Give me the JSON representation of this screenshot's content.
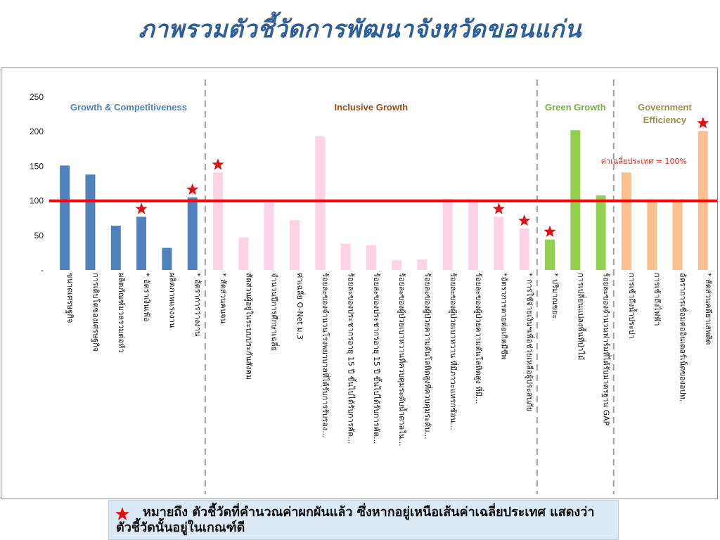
{
  "page": {
    "title": "ภาพรวมตัวชี้วัดการพัฒนาจังหวัดขอนแก่น",
    "footnote": "หมายถึง ตัวชี้วัดที่คำนวณค่าผกผันแล้ว ซึ่งหากอยู่เหนือเส้นค่าเฉลี่ยประเทศ แสดงว่า ตัวชี้วัดนั้นอยู่ในเกณฑ์ดี"
  },
  "colors": {
    "Growth & Competitiveness": "#4f81bd",
    "Inclusive Growth": "#ffd2e6",
    "Green Growth": "#92d050",
    "Government Efficiency": "#fac090",
    "reference_line": "#ff0000",
    "star": "#e11010",
    "divider": "#a0a0a0",
    "group_label_growth": "#4f81bd",
    "group_label_inclusive": "#9c4a12",
    "group_label_green": "#76b041",
    "group_label_government": "#9a8f4f"
  },
  "chart_data": {
    "type": "bar",
    "title": "",
    "xlabel": "",
    "ylabel": "",
    "ylim": [
      0,
      250
    ],
    "yticks": [
      0,
      50,
      100,
      150,
      200,
      250
    ],
    "ytick_labels": [
      "-",
      "50",
      "100",
      "150",
      "200",
      "250"
    ],
    "grid": false,
    "reference_line": {
      "value": 100,
      "label": "ค่าเฉลี่ยประเทศ = 100%"
    },
    "groups": [
      {
        "name": "Growth & Competitiveness",
        "start": 0,
        "end": 5
      },
      {
        "name": "Inclusive Growth",
        "start": 6,
        "end": 18
      },
      {
        "name": "Green Growth",
        "start": 19,
        "end": 21
      },
      {
        "name": "Government Efficiency",
        "start": 22,
        "end": 25
      }
    ],
    "categories": [
      "ขนาดเศรษฐกิจ",
      "การเติบโตของเศรษฐกิจ",
      "ผลิตภัณฑ์มวลรวมต่อหัว",
      "* อัตราเงินเฟ้อ",
      "ผลิตภาพแรงงาน",
      "* อัตราการว่างงาน",
      "* สัดส่วนคนจน",
      "สัดส่วนผู้อยู่ในระบบประกันสังคม",
      "จำนวนปีการศึกษาเฉลี่ย",
      "ค่าเฉลี่ย O-Net ม.3",
      "ร้อยละของจำนวนโรงพยาบาลที่ได้รับการรับรอง...",
      "ร้อยละของประชากรอายุ 15 ปี ขึ้นไปได้รับการคัด...",
      "ร้อยละของประชากรอายุ 15 ปี ขึ้นไปได้รับการคัด...",
      "ร้อยละของผู้ป่วยเบาหวานที่ควบคุมระดับน้ำตาลใน...",
      "ร้อยละของผู้ป่วยความดันโลหิตสูงที่ควบคุมระดับ...",
      "ร้อยละของผู้ป่วยเบาหวาน ที่มีภาวะแทรกซ้อน...",
      "ร้อยละของผู้ป่วยความดันโลหิตสูง ที่มี...",
      "*อัตราการตายต่อเกิดมีชีพ",
      "* การใช้จ่ายเงินฯเพื่อช่วยเหลือผู้ประสบภัย",
      "* ปริมาณขยะ",
      "การเปลี่ยนแปลงพื้นที่ป่าไม้",
      "ร้อยละของจำนวนฟาร์มที่ได้รับมาตรฐาน GAP",
      "การเข้าถึงน้ำประปา",
      "การเข้าถึงไฟฟ้า",
      "อัตราการเชื่อมต่ออินเตอร์เน็ตของอปท.",
      "* สัดส่วนคดียาเสพติด"
    ],
    "values": [
      151,
      138,
      64,
      77,
      32,
      105,
      141,
      47,
      97,
      72,
      193,
      38,
      36,
      14,
      15,
      103,
      101,
      77,
      60,
      44,
      202,
      108,
      141,
      100,
      100,
      201
    ],
    "starred": [
      3,
      5,
      6,
      17,
      18,
      19,
      25
    ]
  }
}
